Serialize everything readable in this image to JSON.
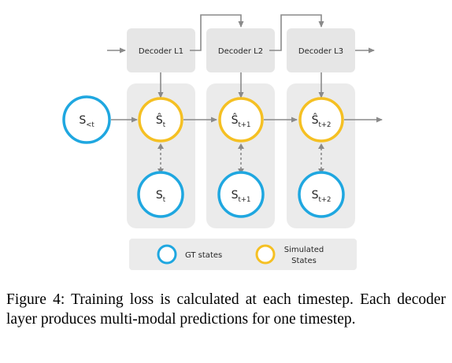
{
  "colors": {
    "gt_state": "#1fa7e0",
    "simulated_state": "#f5c023",
    "group_bg": "#ebebeb",
    "decoder_bg": "#e6e6e6",
    "arrow": "#8a8a8a"
  },
  "decoders": [
    {
      "label": "Decoder L1"
    },
    {
      "label": "Decoder L2"
    },
    {
      "label": "Decoder L3"
    }
  ],
  "input_state": {
    "base": "S",
    "sub": "<t"
  },
  "simulated_states": [
    {
      "base": "Ŝ",
      "sub": "t"
    },
    {
      "base": "Ŝ",
      "sub": "t+1"
    },
    {
      "base": "Ŝ",
      "sub": "t+2"
    }
  ],
  "gt_states": [
    {
      "base": "S",
      "sub": "t"
    },
    {
      "base": "S",
      "sub": "t+1"
    },
    {
      "base": "S",
      "sub": "t+2"
    }
  ],
  "legend": {
    "gt_label": "GT states",
    "simulated_label_line1": "Simulated",
    "simulated_label_line2": "States"
  },
  "caption": "Figure 4: Training loss is calculated at each timestep. Each decoder layer produces multi-modal predictions for one timestep."
}
